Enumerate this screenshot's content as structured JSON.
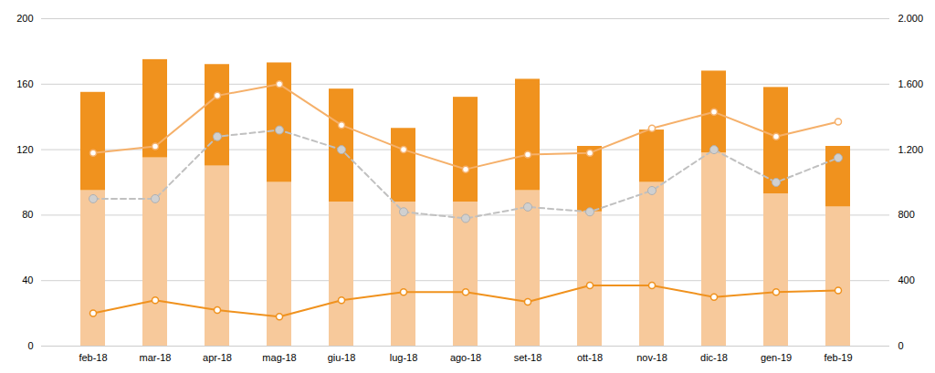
{
  "chart_data": {
    "type": "bar",
    "stacked": true,
    "grid": true,
    "categories": [
      "feb-18",
      "mar-18",
      "apr-18",
      "mag-18",
      "giu-18",
      "lug-18",
      "ago-18",
      "set-18",
      "ott-18",
      "nov-18",
      "dic-18",
      "gen-19",
      "feb-19"
    ],
    "ylim": [
      0,
      200
    ],
    "yticks": [
      0,
      40,
      80,
      120,
      160,
      200
    ],
    "y2lim": [
      0,
      2000
    ],
    "y2ticks": [
      0,
      400,
      800,
      {
        "value": 1200,
        "label": "1.200"
      },
      {
        "value": 1600,
        "label": "1.600"
      },
      {
        "value": 2000,
        "label": "2.000"
      }
    ],
    "series": [
      {
        "type": "bar",
        "color": "#f7c99b",
        "values": [
          95,
          115,
          110,
          100,
          88,
          88,
          88,
          95,
          82,
          100,
          118,
          93,
          85
        ]
      },
      {
        "type": "bar",
        "color": "#f0921e",
        "values": [
          60,
          60,
          62,
          73,
          69,
          45,
          64,
          68,
          40,
          32,
          50,
          65,
          37
        ]
      },
      {
        "type": "line",
        "color": "#c0c0c0",
        "marker": "circle",
        "line_style": "dashed",
        "values": [
          90,
          90,
          128,
          132,
          120,
          82,
          78,
          85,
          82,
          95,
          120,
          100,
          115
        ]
      },
      {
        "type": "line",
        "color": "#f0921e",
        "marker": "circle",
        "line_style": "solid",
        "values": [
          20,
          28,
          22,
          18,
          28,
          33,
          33,
          27,
          37,
          37,
          30,
          33,
          34
        ]
      },
      {
        "type": "line",
        "color": "#f5b06a",
        "marker": "circle",
        "line_style": "solid",
        "values": [
          118,
          122,
          153,
          160,
          135,
          120,
          108,
          117,
          118,
          133,
          143,
          128,
          137
        ]
      }
    ]
  }
}
